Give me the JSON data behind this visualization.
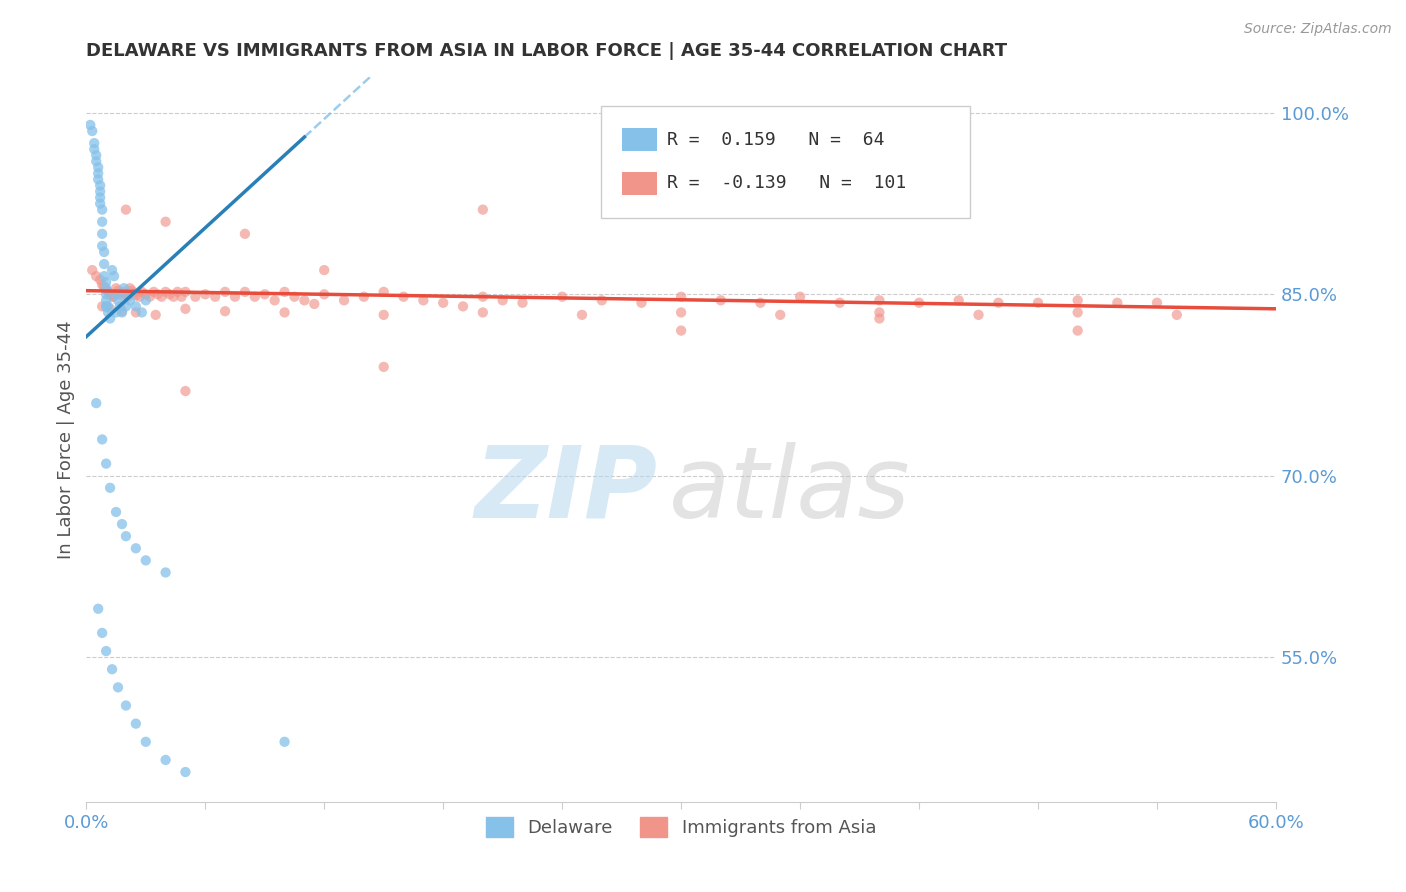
{
  "title": "DELAWARE VS IMMIGRANTS FROM ASIA IN LABOR FORCE | AGE 35-44 CORRELATION CHART",
  "source": "Source: ZipAtlas.com",
  "ylabel": "In Labor Force | Age 35-44",
  "xlim": [
    0.0,
    0.6
  ],
  "ylim": [
    0.43,
    1.03
  ],
  "xticks": [
    0.0,
    0.06,
    0.12,
    0.18,
    0.24,
    0.3,
    0.36,
    0.42,
    0.48,
    0.54,
    0.6
  ],
  "right_yticks": [
    0.55,
    0.7,
    0.85,
    1.0
  ],
  "right_ytick_labels": [
    "55.0%",
    "70.0%",
    "85.0%",
    "100.0%"
  ],
  "r_delaware": 0.159,
  "n_delaware": 64,
  "r_immigrants": -0.139,
  "n_immigrants": 101,
  "dot_color_delaware": "#85c1e9",
  "dot_color_immigrants": "#f1948a",
  "line_color_delaware": "#2980b9",
  "line_color_immigrants": "#e74c3c",
  "dashed_line_color": "#85c1e9",
  "background_color": "#ffffff",
  "legend_r1_color": "#3399ff",
  "legend_r2_color": "#e05c70",
  "delaware_x": [
    0.002,
    0.003,
    0.004,
    0.004,
    0.005,
    0.005,
    0.006,
    0.006,
    0.006,
    0.007,
    0.007,
    0.007,
    0.007,
    0.008,
    0.008,
    0.008,
    0.008,
    0.009,
    0.009,
    0.009,
    0.01,
    0.01,
    0.01,
    0.01,
    0.01,
    0.011,
    0.011,
    0.012,
    0.013,
    0.014,
    0.015,
    0.016,
    0.017,
    0.018,
    0.019,
    0.02,
    0.022,
    0.025,
    0.028,
    0.03,
    0.005,
    0.008,
    0.01,
    0.012,
    0.015,
    0.018,
    0.02,
    0.025,
    0.03,
    0.04,
    0.006,
    0.008,
    0.01,
    0.013,
    0.016,
    0.02,
    0.025,
    0.03,
    0.04,
    0.05,
    0.01,
    0.015,
    0.02,
    0.1
  ],
  "delaware_y": [
    0.99,
    0.985,
    0.975,
    0.97,
    0.965,
    0.96,
    0.955,
    0.95,
    0.945,
    0.94,
    0.935,
    0.93,
    0.925,
    0.92,
    0.91,
    0.9,
    0.89,
    0.885,
    0.875,
    0.865,
    0.86,
    0.855,
    0.85,
    0.845,
    0.84,
    0.84,
    0.835,
    0.83,
    0.87,
    0.865,
    0.85,
    0.845,
    0.84,
    0.835,
    0.855,
    0.85,
    0.845,
    0.84,
    0.835,
    0.845,
    0.76,
    0.73,
    0.71,
    0.69,
    0.67,
    0.66,
    0.65,
    0.64,
    0.63,
    0.62,
    0.59,
    0.57,
    0.555,
    0.54,
    0.525,
    0.51,
    0.495,
    0.48,
    0.465,
    0.455,
    0.84,
    0.835,
    0.84,
    0.48
  ],
  "immigrants_x": [
    0.003,
    0.005,
    0.007,
    0.008,
    0.009,
    0.01,
    0.011,
    0.012,
    0.013,
    0.014,
    0.015,
    0.016,
    0.017,
    0.018,
    0.019,
    0.02,
    0.021,
    0.022,
    0.023,
    0.024,
    0.025,
    0.027,
    0.028,
    0.03,
    0.032,
    0.034,
    0.036,
    0.038,
    0.04,
    0.042,
    0.044,
    0.046,
    0.048,
    0.05,
    0.055,
    0.06,
    0.065,
    0.07,
    0.075,
    0.08,
    0.085,
    0.09,
    0.095,
    0.1,
    0.105,
    0.11,
    0.115,
    0.12,
    0.13,
    0.14,
    0.15,
    0.16,
    0.17,
    0.18,
    0.19,
    0.2,
    0.21,
    0.22,
    0.24,
    0.26,
    0.28,
    0.3,
    0.32,
    0.34,
    0.36,
    0.38,
    0.4,
    0.42,
    0.44,
    0.46,
    0.48,
    0.5,
    0.52,
    0.54,
    0.008,
    0.012,
    0.018,
    0.025,
    0.035,
    0.05,
    0.07,
    0.1,
    0.15,
    0.2,
    0.25,
    0.3,
    0.35,
    0.4,
    0.45,
    0.5,
    0.55,
    0.02,
    0.04,
    0.08,
    0.12,
    0.2,
    0.3,
    0.4,
    0.5,
    0.05,
    0.15
  ],
  "immigrants_y": [
    0.87,
    0.865,
    0.862,
    0.858,
    0.856,
    0.854,
    0.852,
    0.85,
    0.848,
    0.848,
    0.855,
    0.853,
    0.851,
    0.849,
    0.852,
    0.85,
    0.848,
    0.855,
    0.853,
    0.851,
    0.849,
    0.848,
    0.852,
    0.85,
    0.848,
    0.852,
    0.85,
    0.848,
    0.852,
    0.85,
    0.848,
    0.852,
    0.848,
    0.852,
    0.848,
    0.85,
    0.848,
    0.852,
    0.848,
    0.852,
    0.848,
    0.85,
    0.845,
    0.852,
    0.848,
    0.845,
    0.842,
    0.85,
    0.845,
    0.848,
    0.852,
    0.848,
    0.845,
    0.843,
    0.84,
    0.848,
    0.845,
    0.843,
    0.848,
    0.845,
    0.843,
    0.848,
    0.845,
    0.843,
    0.848,
    0.843,
    0.845,
    0.843,
    0.845,
    0.843,
    0.843,
    0.845,
    0.843,
    0.843,
    0.84,
    0.838,
    0.836,
    0.835,
    0.833,
    0.838,
    0.836,
    0.835,
    0.833,
    0.835,
    0.833,
    0.835,
    0.833,
    0.835,
    0.833,
    0.835,
    0.833,
    0.92,
    0.91,
    0.9,
    0.87,
    0.92,
    0.82,
    0.83,
    0.82,
    0.77,
    0.79
  ]
}
